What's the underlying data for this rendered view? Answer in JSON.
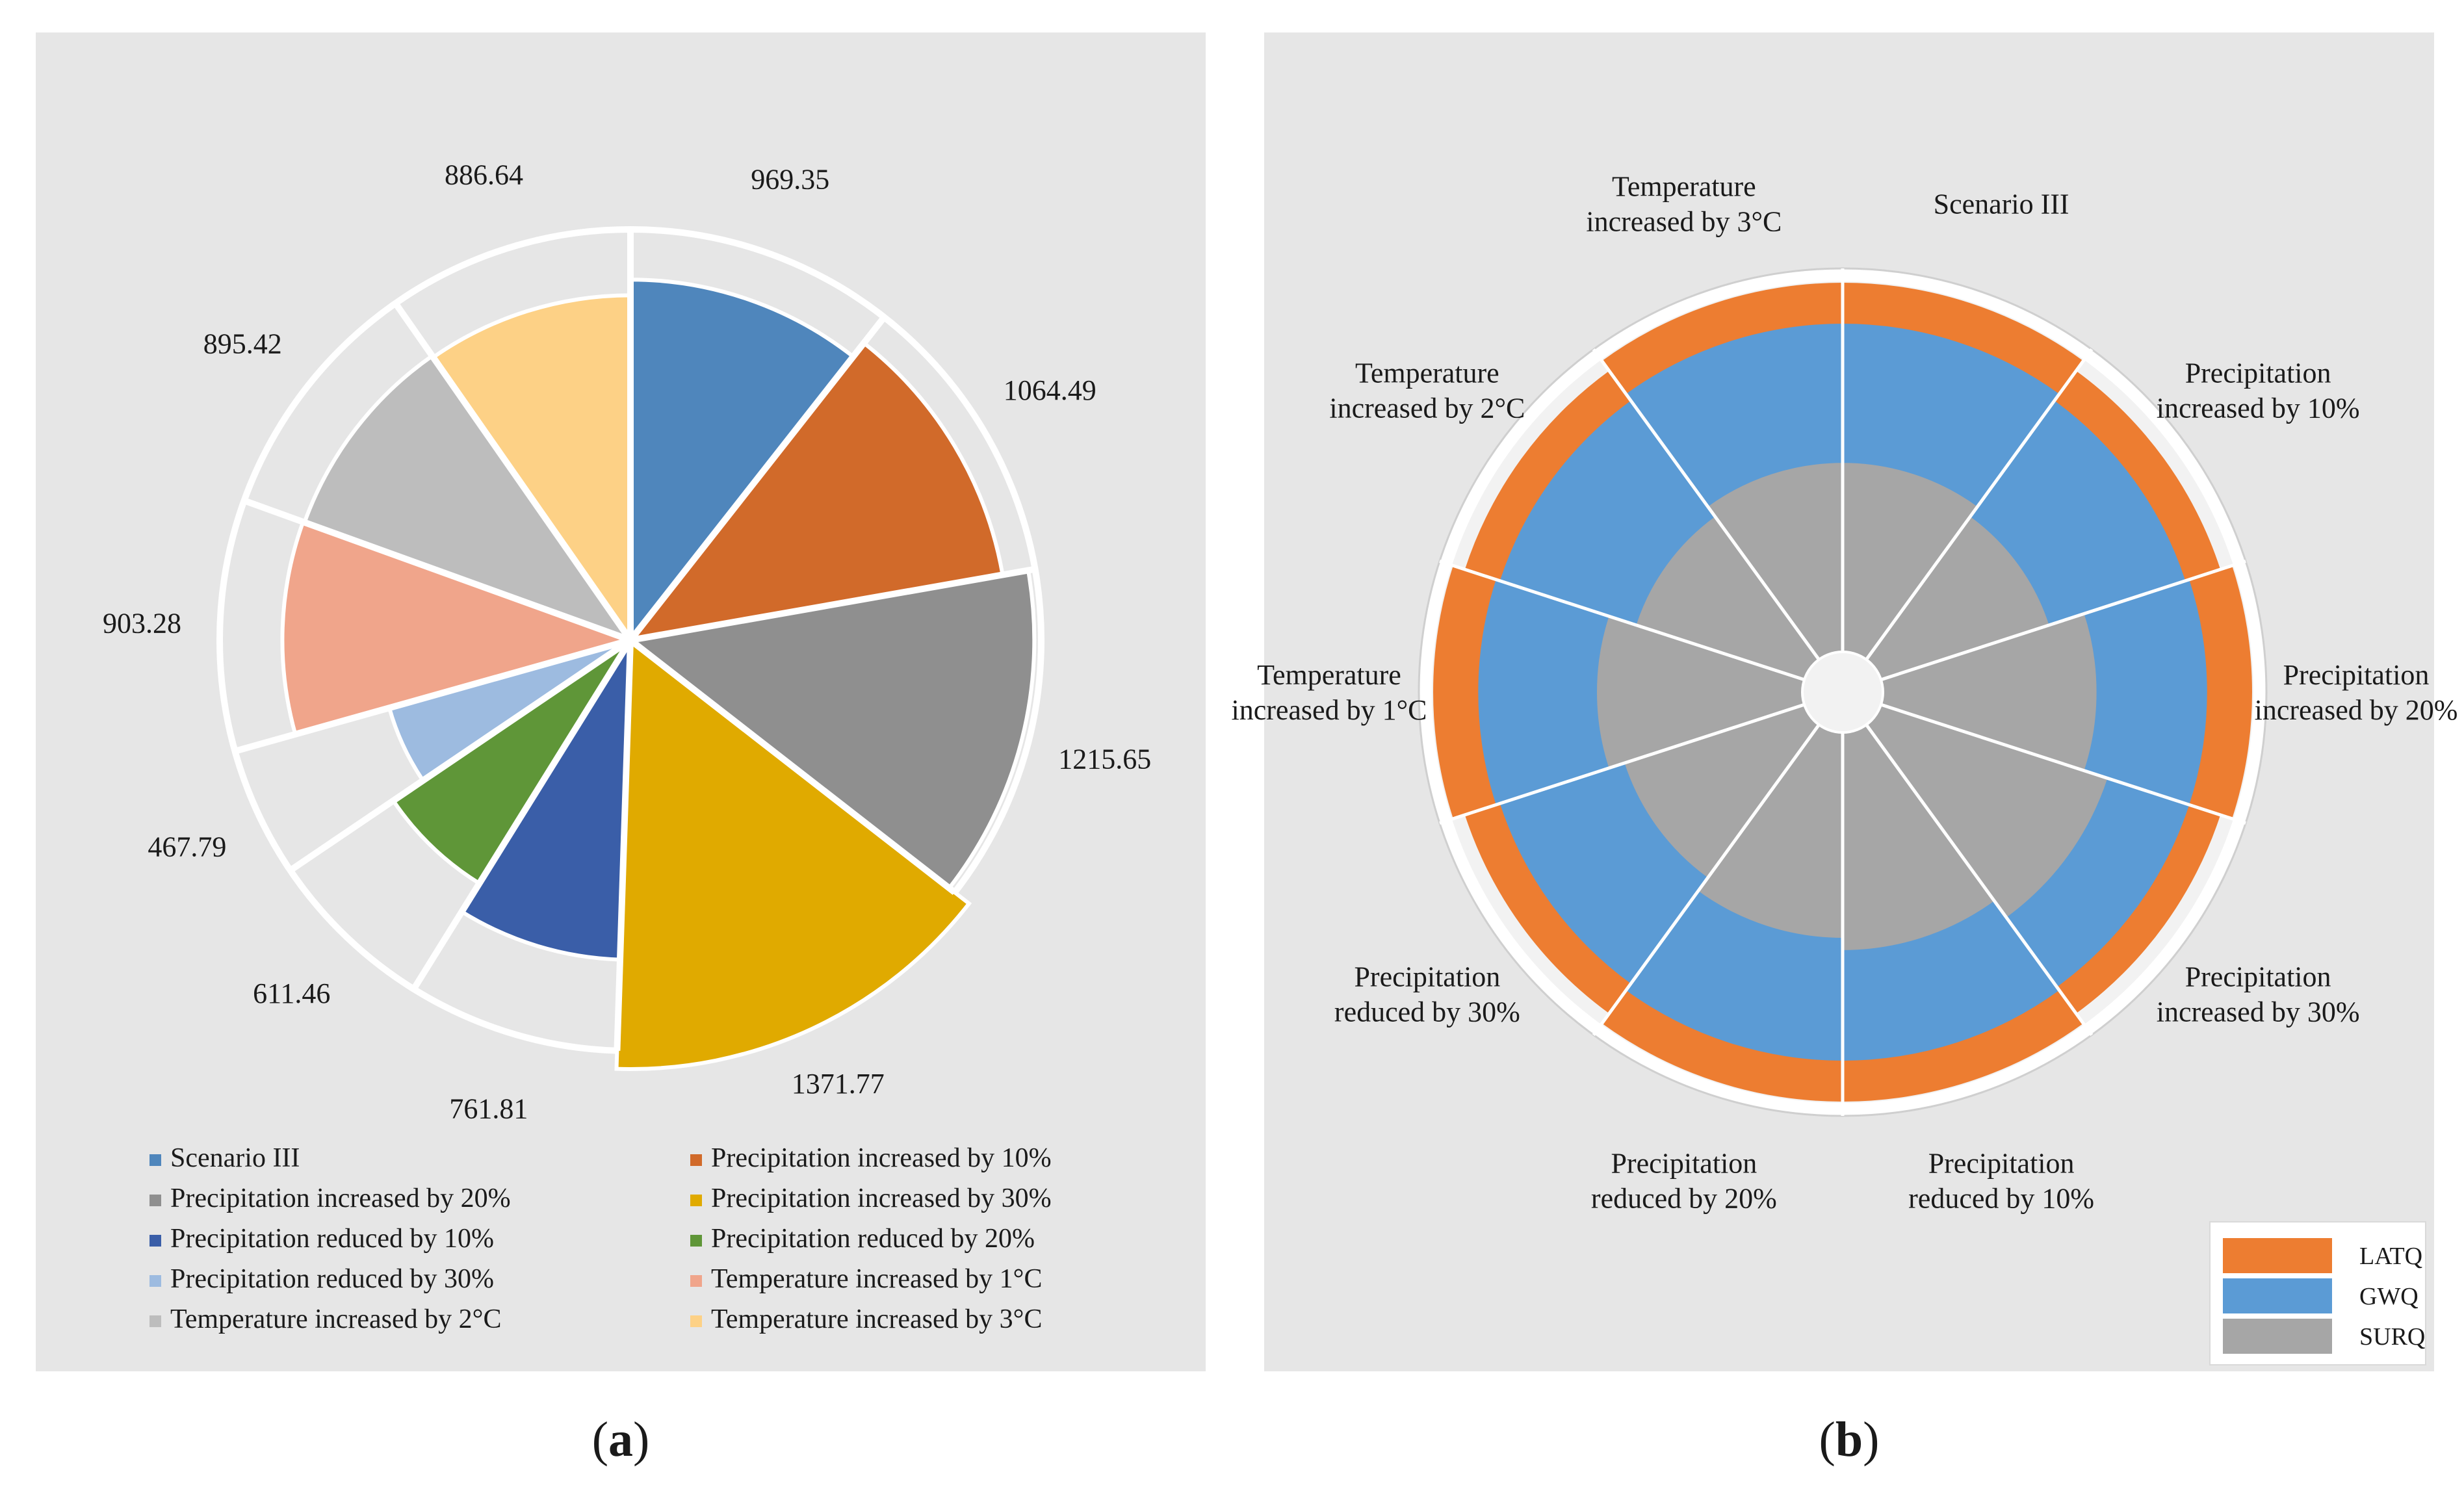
{
  "chart_data": [
    {
      "type": "pie",
      "variant": "rose",
      "panel_label": "(a)",
      "background": "#e6e6e6",
      "categories": [
        "Scenario III",
        "Precipitation increased by 10%",
        "Precipitation increased by 20%",
        "Precipitation increased by 30%",
        "Precipitation reduced by 10%",
        "Precipitation reduced by 20%",
        "Precipitation reduced by 30%",
        "Temperature increased by 1°C",
        "Temperature increased by 2°C",
        "Temperature increased by 3°C"
      ],
      "values": [
        969.35,
        1064.49,
        1215.65,
        1371.77,
        761.81,
        611.46,
        467.79,
        903.28,
        895.42,
        886.64
      ],
      "value_labels": [
        "969.35",
        "1064.49",
        "1215.65",
        "1371.77",
        "761.81",
        "611.46",
        "467.79",
        "903.28",
        "895.42",
        "886.64"
      ],
      "colors": [
        "#4f86bc",
        "#d16a2a",
        "#8f8f8f",
        "#e0aa00",
        "#3a5ea8",
        "#5f9638",
        "#9dbbe0",
        "#f0a58b",
        "#bdbdbd",
        "#fdd186"
      ],
      "legend_position": "bottom",
      "legend_items": [
        {
          "label": "Scenario III",
          "color": "#4f86bc"
        },
        {
          "label": "Precipitation increased by 10%",
          "color": "#d16a2a"
        },
        {
          "label": "Precipitation increased by 20%",
          "color": "#8f8f8f"
        },
        {
          "label": "Precipitation increased by 30%",
          "color": "#e0aa00"
        },
        {
          "label": "Precipitation reduced by 10%",
          "color": "#3a5ea8"
        },
        {
          "label": "Precipitation reduced by 20%",
          "color": "#5f9638"
        },
        {
          "label": "Precipitation reduced by 30%",
          "color": "#9dbbe0"
        },
        {
          "label": "Temperature increased by 1°C",
          "color": "#f0a58b"
        },
        {
          "label": "Temperature increased by 2°C",
          "color": "#bdbdbd"
        },
        {
          "label": "Temperature increased by 3°C",
          "color": "#fdd186"
        }
      ]
    },
    {
      "type": "pie",
      "variant": "stacked radial",
      "panel_label": "(b)",
      "background": "#e6e6e6",
      "categories": [
        "Scenario III",
        "Precipitation increased by 10%",
        "Precipitation increased by 20%",
        "Precipitation increased by 30%",
        "Precipitation reduced by 10%",
        "Precipitation reduced by 20%",
        "Precipitation reduced by 30%",
        "Temperature increased by 1°C",
        "Temperature increased by 2°C",
        "Temperature increased by 3°C"
      ],
      "category_label_lines": [
        [
          "Scenario III"
        ],
        [
          "Precipitation",
          "increased by 10%"
        ],
        [
          "Precipitation",
          "increased by 20%"
        ],
        [
          "Precipitation",
          "increased by 30%"
        ],
        [
          "Precipitation",
          "reduced by 10%"
        ],
        [
          "Precipitation",
          "reduced by 20%"
        ],
        [
          "Precipitation",
          "reduced by 30%"
        ],
        [
          "Temperature",
          "increased by 1°C"
        ],
        [
          "Temperature",
          "increased by 2°C"
        ],
        [
          "Temperature",
          "increased by 3°C"
        ]
      ],
      "series": [
        {
          "name": "SURQ",
          "color": "#a6a6a6",
          "values": [
            0.56,
            0.53,
            0.62,
            0.68,
            0.63,
            0.6,
            0.56,
            0.6,
            0.53,
            0.56
          ]
        },
        {
          "name": "GWQ",
          "color": "#5b9bd5",
          "values": [
            0.9,
            0.88,
            0.89,
            0.89,
            0.9,
            0.9,
            0.88,
            0.89,
            0.88,
            0.9
          ]
        },
        {
          "name": "LATQ",
          "color": "#ed7d31",
          "values": [
            1.0,
            0.97,
            1.0,
            0.97,
            1.0,
            1.0,
            0.97,
            1.0,
            0.97,
            1.0
          ]
        }
      ],
      "value_scale": "fraction of outer radius",
      "legend_position": "bottom-right",
      "legend_items": [
        {
          "label": "LATQ",
          "color": "#ed7d31"
        },
        {
          "label": "GWQ",
          "color": "#5b9bd5"
        },
        {
          "label": "SURQ",
          "color": "#a6a6a6"
        }
      ]
    }
  ]
}
